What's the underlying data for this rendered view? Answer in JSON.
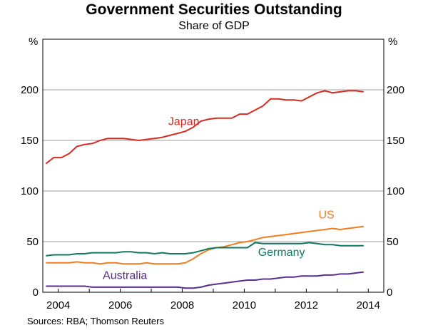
{
  "chart_data": {
    "type": "line",
    "title": "Government Securities Outstanding",
    "subtitle": "Share of GDP",
    "ylabel_left": "%",
    "ylabel_right": "%",
    "ylim": [
      0,
      250
    ],
    "yticks": [
      0,
      50,
      100,
      150,
      200
    ],
    "xlim": [
      2003.5,
      2014.5
    ],
    "xticks": [
      2004,
      2006,
      2008,
      2010,
      2012,
      2014
    ],
    "source": "Sources:   RBA; Thomson Reuters",
    "series": [
      {
        "name": "Japan",
        "color": "#d62a22",
        "x": [
          2003.6,
          2003.85,
          2004.1,
          2004.35,
          2004.6,
          2004.85,
          2005.1,
          2005.35,
          2005.6,
          2005.85,
          2006.1,
          2006.35,
          2006.6,
          2006.85,
          2007.1,
          2007.35,
          2007.6,
          2007.85,
          2008.1,
          2008.35,
          2008.6,
          2008.85,
          2009.1,
          2009.35,
          2009.6,
          2009.85,
          2010.1,
          2010.35,
          2010.6,
          2010.85,
          2011.1,
          2011.35,
          2011.6,
          2011.85,
          2012.1,
          2012.35,
          2012.6,
          2012.85,
          2013.1,
          2013.35,
          2013.6,
          2013.85
        ],
        "values": [
          127,
          133,
          133,
          137,
          144,
          146,
          147,
          150,
          152,
          152,
          152,
          151,
          150,
          151,
          152,
          153,
          155,
          157,
          159,
          163,
          169,
          171,
          172,
          172,
          172,
          176,
          176,
          180,
          184,
          191,
          191,
          190,
          190,
          189,
          193,
          197,
          199,
          197,
          198,
          199,
          199,
          198
        ]
      },
      {
        "name": "US",
        "color": "#f07d21",
        "x": [
          2003.6,
          2003.85,
          2004.1,
          2004.35,
          2004.6,
          2004.85,
          2005.1,
          2005.35,
          2005.6,
          2005.85,
          2006.1,
          2006.35,
          2006.6,
          2006.85,
          2007.1,
          2007.35,
          2007.6,
          2007.85,
          2008.1,
          2008.35,
          2008.6,
          2008.85,
          2009.1,
          2009.35,
          2009.6,
          2009.85,
          2010.1,
          2010.35,
          2010.6,
          2010.85,
          2011.1,
          2011.35,
          2011.6,
          2011.85,
          2012.1,
          2012.35,
          2012.6,
          2012.85,
          2013.1,
          2013.35,
          2013.6,
          2013.85
        ],
        "values": [
          29,
          29,
          29,
          29,
          30,
          29,
          29,
          28,
          29,
          29,
          28,
          28,
          28,
          29,
          28,
          28,
          28,
          28,
          29,
          33,
          38,
          42,
          44,
          45,
          47,
          49,
          50,
          52,
          54,
          55,
          56,
          57,
          58,
          59,
          60,
          61,
          62,
          63,
          62,
          63,
          64,
          65
        ]
      },
      {
        "name": "Germany",
        "color": "#117a5e",
        "x": [
          2003.6,
          2003.85,
          2004.1,
          2004.35,
          2004.6,
          2004.85,
          2005.1,
          2005.35,
          2005.6,
          2005.85,
          2006.1,
          2006.35,
          2006.6,
          2006.85,
          2007.1,
          2007.35,
          2007.6,
          2007.85,
          2008.1,
          2008.35,
          2008.6,
          2008.85,
          2009.1,
          2009.35,
          2009.6,
          2009.85,
          2010.1,
          2010.35,
          2010.6,
          2010.85,
          2011.1,
          2011.35,
          2011.6,
          2011.85,
          2012.1,
          2012.35,
          2012.6,
          2012.85,
          2013.1,
          2013.35,
          2013.6,
          2013.85
        ],
        "values": [
          36,
          37,
          37,
          37,
          38,
          38,
          39,
          39,
          39,
          39,
          40,
          40,
          39,
          39,
          38,
          39,
          38,
          38,
          38,
          39,
          41,
          43,
          44,
          44,
          44,
          44,
          44,
          49,
          48,
          48,
          48,
          48,
          48,
          48,
          49,
          48,
          47,
          47,
          46,
          46,
          46,
          46
        ]
      },
      {
        "name": "Australia",
        "color": "#5b2d8e",
        "x": [
          2003.6,
          2003.85,
          2004.1,
          2004.35,
          2004.6,
          2004.85,
          2005.1,
          2005.35,
          2005.6,
          2005.85,
          2006.1,
          2006.35,
          2006.6,
          2006.85,
          2007.1,
          2007.35,
          2007.6,
          2007.85,
          2008.1,
          2008.35,
          2008.6,
          2008.85,
          2009.1,
          2009.35,
          2009.6,
          2009.85,
          2010.1,
          2010.35,
          2010.6,
          2010.85,
          2011.1,
          2011.35,
          2011.6,
          2011.85,
          2012.1,
          2012.35,
          2012.6,
          2012.85,
          2013.1,
          2013.35,
          2013.6,
          2013.85
        ],
        "values": [
          6,
          6,
          6,
          6,
          6,
          6,
          5,
          5,
          5,
          5,
          5,
          5,
          5,
          5,
          5,
          5,
          5,
          5,
          4,
          4,
          5,
          7,
          8,
          9,
          10,
          11,
          12,
          12,
          13,
          13,
          14,
          15,
          15,
          16,
          16,
          16,
          17,
          17,
          18,
          18,
          19,
          20
        ]
      }
    ],
    "annotations": [
      {
        "text": "Japan",
        "x": 2008.05,
        "y": 165,
        "color": "#d62a22"
      },
      {
        "text": "US",
        "x": 2012.65,
        "y": 73,
        "color": "#f07d21"
      },
      {
        "text": "Germany",
        "x": 2011.2,
        "y": 36,
        "color": "#117a5e"
      },
      {
        "text": "Australia",
        "x": 2006.15,
        "y": 13,
        "color": "#5b2d8e"
      }
    ]
  }
}
